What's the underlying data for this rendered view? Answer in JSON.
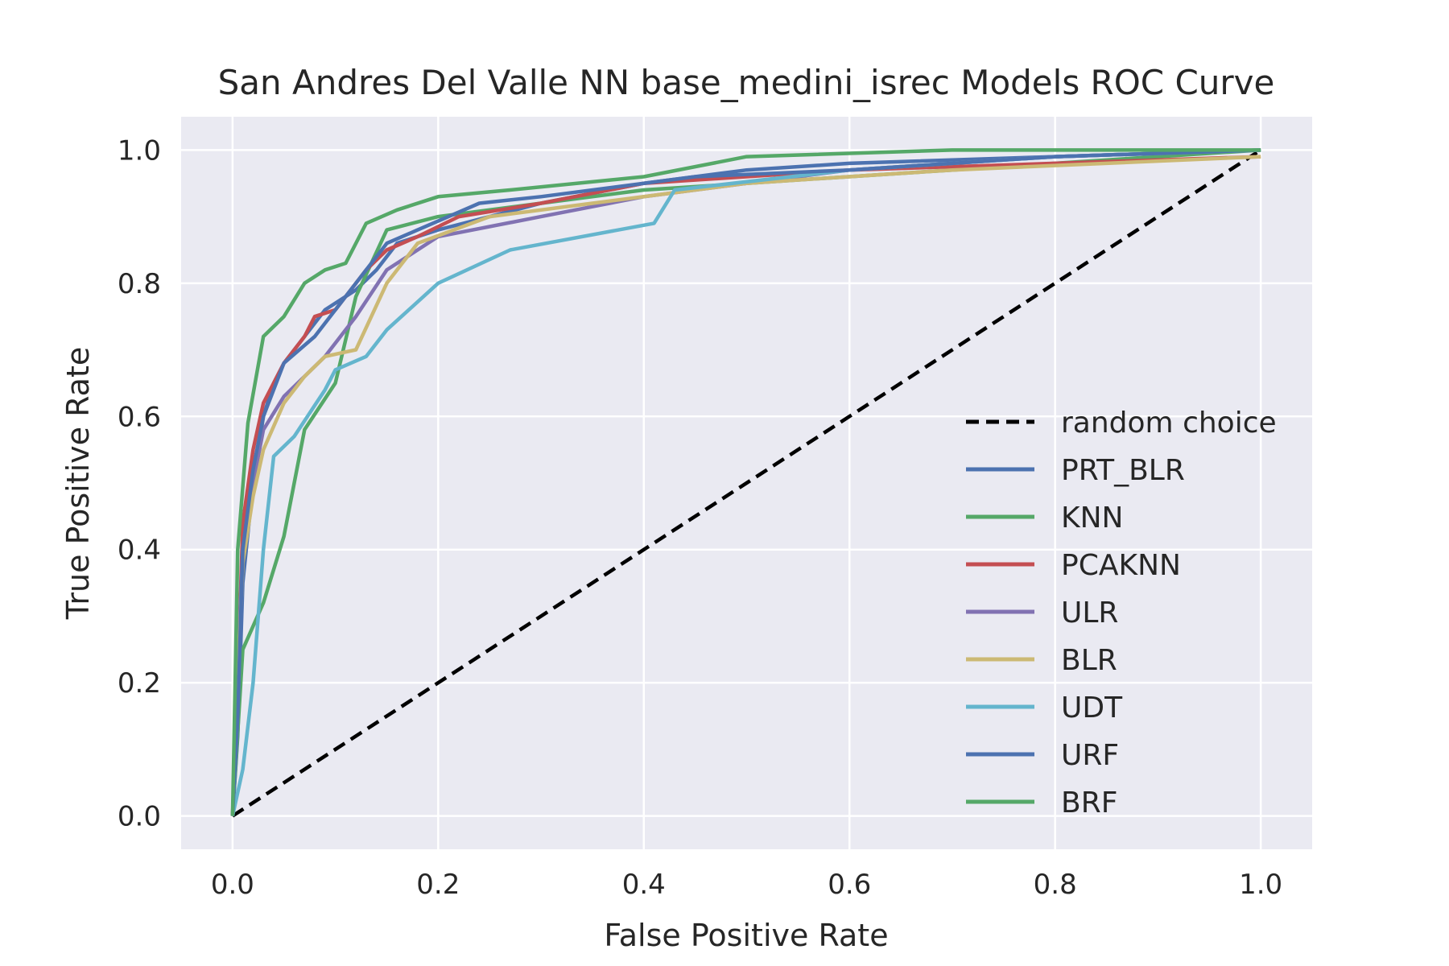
{
  "chart_data": {
    "type": "line",
    "title": "San Andres Del Valle NN base_medini_isrec Models ROC Curve",
    "xlabel": "False Positive Rate",
    "ylabel": "True Positive Rate",
    "xlim": [
      -0.05,
      1.05
    ],
    "ylim": [
      -0.05,
      1.05
    ],
    "xticks": [
      "0.0",
      "0.2",
      "0.4",
      "0.6",
      "0.8",
      "1.0"
    ],
    "yticks": [
      "0.0",
      "0.2",
      "0.4",
      "0.6",
      "0.8",
      "1.0"
    ],
    "grid": true,
    "background": "#eaeaf2",
    "legend_position": "lower-right",
    "series": [
      {
        "name": "random choice",
        "color": "#000000",
        "dashed": true,
        "x": [
          0,
          1
        ],
        "y": [
          0,
          1
        ]
      },
      {
        "name": "PRT_BLR",
        "color": "#4c72b0",
        "x": [
          0,
          0.005,
          0.01,
          0.02,
          0.03,
          0.04,
          0.05,
          0.07,
          0.09,
          0.12,
          0.14,
          0.16,
          0.2,
          0.25,
          0.3,
          0.4,
          0.5,
          0.6,
          0.8,
          1.0
        ],
        "y": [
          0,
          0.12,
          0.35,
          0.5,
          0.6,
          0.65,
          0.68,
          0.72,
          0.76,
          0.79,
          0.82,
          0.86,
          0.88,
          0.9,
          0.92,
          0.95,
          0.97,
          0.98,
          0.99,
          1.0
        ]
      },
      {
        "name": "KNN",
        "color": "#55a868",
        "x": [
          0,
          0.01,
          0.03,
          0.05,
          0.07,
          0.1,
          0.12,
          0.15,
          0.2,
          0.3,
          0.4,
          0.5,
          0.7,
          0.9,
          1.0
        ],
        "y": [
          0,
          0.25,
          0.32,
          0.42,
          0.58,
          0.65,
          0.78,
          0.88,
          0.9,
          0.92,
          0.94,
          0.95,
          0.97,
          0.99,
          1.0
        ]
      },
      {
        "name": "PCAKNN",
        "color": "#c44e52",
        "x": [
          0,
          0.005,
          0.01,
          0.02,
          0.03,
          0.05,
          0.07,
          0.08,
          0.1,
          0.13,
          0.15,
          0.18,
          0.22,
          0.3,
          0.4,
          0.6,
          0.8,
          1.0
        ],
        "y": [
          0,
          0.2,
          0.44,
          0.55,
          0.62,
          0.68,
          0.72,
          0.75,
          0.76,
          0.82,
          0.85,
          0.87,
          0.9,
          0.92,
          0.95,
          0.97,
          0.98,
          0.99
        ]
      },
      {
        "name": "ULR",
        "color": "#8172b2",
        "x": [
          0,
          0.005,
          0.01,
          0.02,
          0.03,
          0.05,
          0.07,
          0.09,
          0.12,
          0.15,
          0.2,
          0.3,
          0.4,
          0.6,
          0.8,
          1.0
        ],
        "y": [
          0,
          0.22,
          0.4,
          0.5,
          0.58,
          0.63,
          0.66,
          0.69,
          0.75,
          0.82,
          0.87,
          0.9,
          0.93,
          0.97,
          0.99,
          1.0
        ]
      },
      {
        "name": "BLR",
        "color": "#ccb974",
        "x": [
          0,
          0.005,
          0.01,
          0.02,
          0.03,
          0.05,
          0.07,
          0.09,
          0.12,
          0.15,
          0.18,
          0.25,
          0.35,
          0.5,
          0.7,
          1.0
        ],
        "y": [
          0,
          0.2,
          0.38,
          0.48,
          0.55,
          0.62,
          0.66,
          0.69,
          0.7,
          0.8,
          0.86,
          0.9,
          0.92,
          0.95,
          0.97,
          0.99
        ]
      },
      {
        "name": "UDT",
        "color": "#64b5cd",
        "x": [
          0,
          0.01,
          0.02,
          0.03,
          0.04,
          0.06,
          0.09,
          0.1,
          0.13,
          0.15,
          0.2,
          0.27,
          0.41,
          0.43,
          0.6,
          0.8,
          1.0
        ],
        "y": [
          0,
          0.07,
          0.2,
          0.4,
          0.54,
          0.57,
          0.64,
          0.67,
          0.69,
          0.73,
          0.8,
          0.85,
          0.89,
          0.94,
          0.97,
          0.99,
          1.0
        ]
      },
      {
        "name": "URF",
        "color": "#4c72b0",
        "x": [
          0,
          0.005,
          0.01,
          0.02,
          0.03,
          0.05,
          0.08,
          0.1,
          0.13,
          0.15,
          0.18,
          0.24,
          0.3,
          0.45,
          0.6,
          0.8,
          1.0
        ],
        "y": [
          0,
          0.15,
          0.4,
          0.52,
          0.6,
          0.68,
          0.72,
          0.76,
          0.82,
          0.86,
          0.88,
          0.92,
          0.93,
          0.96,
          0.97,
          0.99,
          1.0
        ]
      },
      {
        "name": "BRF",
        "color": "#55a868",
        "x": [
          0,
          0.005,
          0.015,
          0.03,
          0.05,
          0.07,
          0.09,
          0.11,
          0.13,
          0.16,
          0.2,
          0.27,
          0.4,
          0.5,
          0.7,
          1.0
        ],
        "y": [
          0,
          0.4,
          0.59,
          0.72,
          0.75,
          0.8,
          0.82,
          0.83,
          0.89,
          0.91,
          0.93,
          0.94,
          0.96,
          0.99,
          1.0,
          1.0
        ]
      }
    ]
  }
}
